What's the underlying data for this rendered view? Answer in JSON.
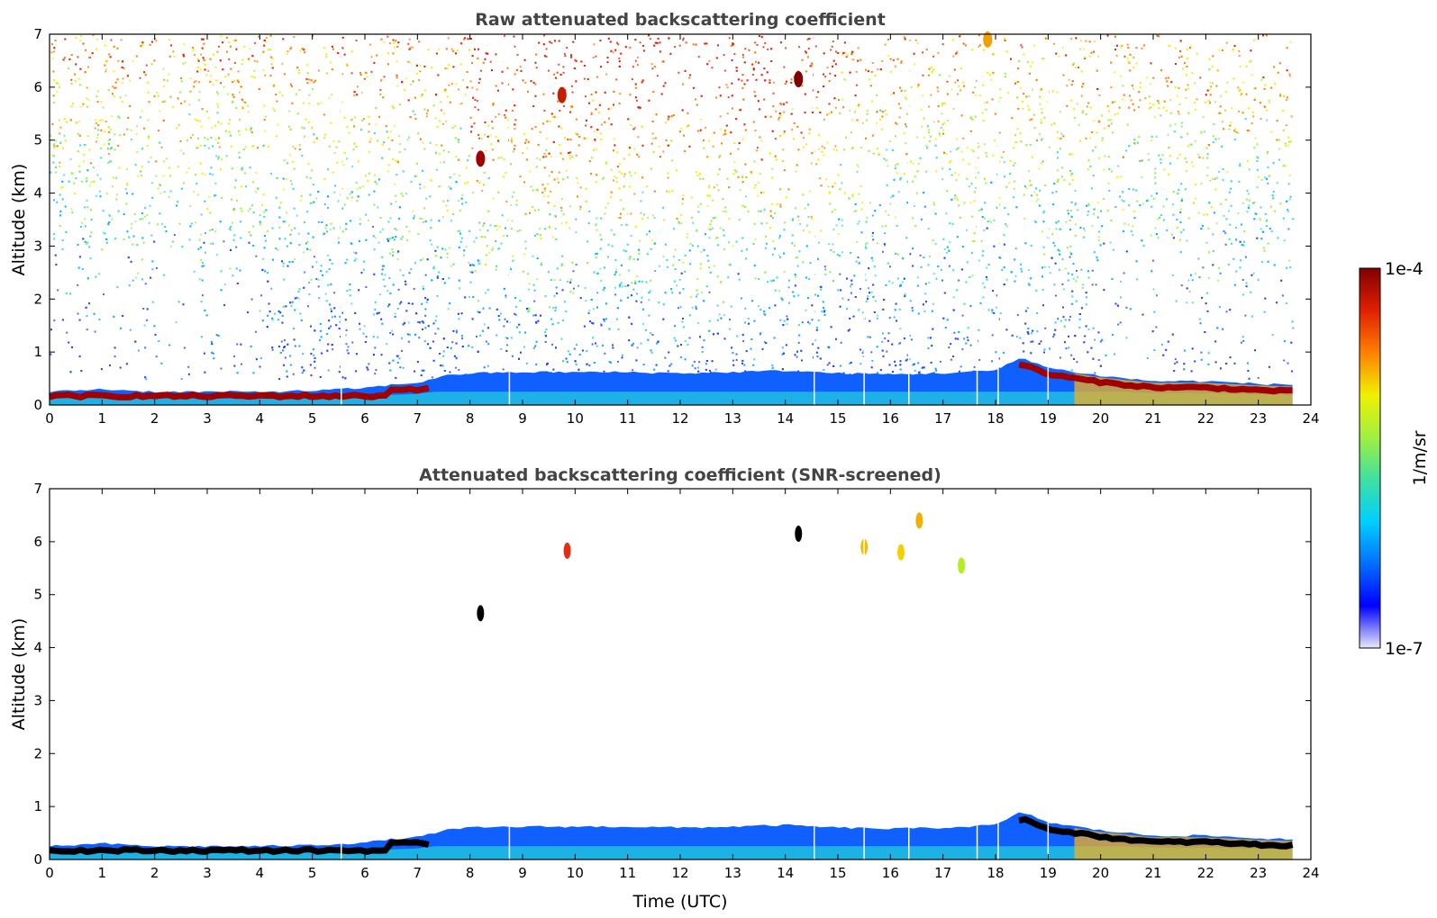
{
  "chart_data": [
    {
      "type": "heatmap",
      "title": "Raw attenuated backscattering coefficient",
      "xlabel": "",
      "ylabel": "Altitude (km)",
      "xlim": [
        0,
        24
      ],
      "ylim": [
        0,
        7
      ],
      "xticks": [
        "0",
        "1",
        "2",
        "3",
        "4",
        "5",
        "6",
        "7",
        "8",
        "9",
        "10",
        "11",
        "12",
        "13",
        "14",
        "15",
        "16",
        "17",
        "18",
        "19",
        "20",
        "21",
        "22",
        "23",
        "24"
      ],
      "yticks": [
        "0",
        "1",
        "2",
        "3",
        "4",
        "5",
        "6",
        "7"
      ],
      "data_end_hour": 23.65,
      "gap_hours": [
        5.55,
        8.75,
        14.55,
        15.5,
        16.35,
        17.65,
        18.05,
        19.0
      ],
      "boundary_layer": {
        "hours": [
          0,
          1,
          2,
          3,
          4,
          5,
          6,
          6.5,
          7,
          7.5,
          8,
          9,
          10,
          11,
          12,
          13,
          14,
          15,
          16,
          17,
          18,
          18.5,
          19,
          20,
          21,
          22,
          23,
          23.65
        ],
        "top_km": [
          0.25,
          0.3,
          0.25,
          0.25,
          0.25,
          0.27,
          0.32,
          0.38,
          0.42,
          0.55,
          0.6,
          0.62,
          0.62,
          0.62,
          0.6,
          0.62,
          0.65,
          0.6,
          0.58,
          0.6,
          0.65,
          0.9,
          0.7,
          0.55,
          0.45,
          0.45,
          0.4,
          0.38
        ]
      },
      "noise": "raw"
    },
    {
      "type": "heatmap",
      "title": "Attenuated backscattering coefficient (SNR-screened)",
      "xlabel": "Time (UTC)",
      "ylabel": "Altitude (km)",
      "xlim": [
        0,
        24
      ],
      "ylim": [
        0,
        7
      ],
      "xticks": [
        "0",
        "1",
        "2",
        "3",
        "4",
        "5",
        "6",
        "7",
        "8",
        "9",
        "10",
        "11",
        "12",
        "13",
        "14",
        "15",
        "16",
        "17",
        "18",
        "19",
        "20",
        "21",
        "22",
        "23",
        "24"
      ],
      "yticks": [
        "0",
        "1",
        "2",
        "3",
        "4",
        "5",
        "6",
        "7"
      ],
      "data_end_hour": 23.65,
      "gap_hours": [
        5.55,
        8.75,
        14.55,
        15.5,
        16.35,
        17.65,
        18.05,
        19.0
      ],
      "noise": "screened",
      "features": [
        {
          "hour": 8.2,
          "km": 4.65,
          "color": "#000000"
        },
        {
          "hour": 9.85,
          "km": 5.83,
          "color": "#e03010"
        },
        {
          "hour": 14.25,
          "km": 6.15,
          "color": "#000000"
        },
        {
          "hour": 15.5,
          "km": 5.9,
          "color": "#f0c000"
        },
        {
          "hour": 16.2,
          "km": 5.8,
          "color": "#f0d000"
        },
        {
          "hour": 16.55,
          "km": 6.4,
          "color": "#f0b000"
        },
        {
          "hour": 17.35,
          "km": 5.55,
          "color": "#b0f020"
        }
      ]
    }
  ],
  "colorbar": {
    "label": "1/m/sr",
    "max_label": "1e-4",
    "min_label": "1e-7",
    "colormap": [
      "#e8e8f8",
      "#0000ff",
      "#0070ff",
      "#00d0ff",
      "#40e0a0",
      "#a0f040",
      "#f0f000",
      "#ff8000",
      "#e02000",
      "#800000"
    ]
  }
}
